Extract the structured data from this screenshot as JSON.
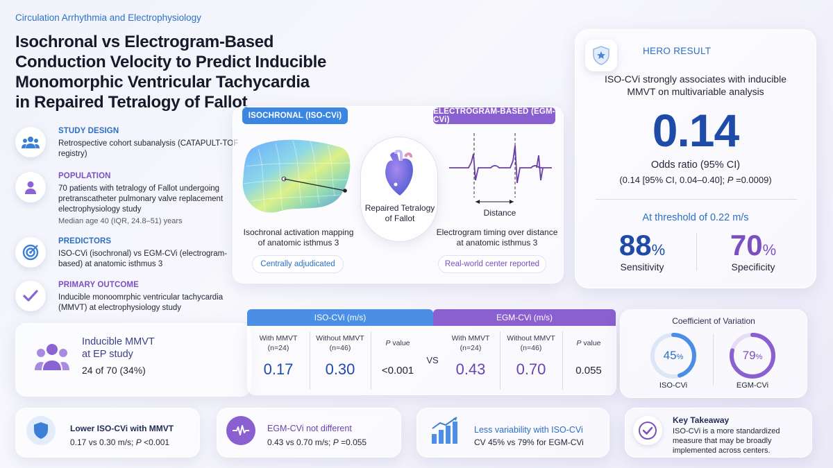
{
  "journal": "Circulation Arrhythmia and Electrophysiology",
  "title": "Isochronal vs Electrogram-Based Conduction Velocity to Predict Inducible Monomorphic Ventricular Tachycardia in Repaired Tetralogy of Fallot",
  "sections": {
    "design": {
      "heading": "STUDY DESIGN",
      "text": "Retrospective cohort subanalysis (CATAPULT-TOF registry)",
      "icon": "group-icon"
    },
    "population": {
      "heading": "POPULATION",
      "text": "70 patients with tetralogy of Fallot undergoing pretranscatheter pulmonary valve replacement electrophysiology study",
      "sub": "Median age 40 (IQR, 24.8–51) years",
      "icon": "person-icon"
    },
    "predictors": {
      "heading": "PREDICTORS",
      "text": "ISO-CVi (isochronal) vs EGM-CVi (electrogram-based) at anatomic isthmus 3",
      "icon": "target-icon"
    },
    "outcome": {
      "heading": "PRIMARY OUTCOME",
      "text": "Inducible monoomrphic ventricular tachycardia (MMVT) at electrophysiology study",
      "icon": "check-icon"
    }
  },
  "methods": {
    "iso_tag": "ISOCHRONAL (ISO-CVi)",
    "egm_tag": "ELECTROGRAM-BASED (EGM-CVi)",
    "heart_label": "Repaired Tetralogy of Fallot",
    "iso_caption": "Isochronal activation mapping of anatomic isthmus 3",
    "egm_caption": "Electrogram timing over distance at anatomic isthmus 3",
    "distance_label": "Distance",
    "iso_pill": "Centrally adjudicated",
    "egm_pill": "Real-world center reported"
  },
  "hero": {
    "label": "HERO RESULT",
    "statement": "ISO-CVi strongly associates with inducible MMVT on multivariable analysis",
    "value": "0.14",
    "metric": "Odds ratio (95% CI)",
    "ci_prefix": "(0.14 [95% CI, 0.04–0.40]; ",
    "ci_p": "P",
    "ci_suffix": " =0.0009)",
    "threshold": "At threshold of 0.22 m/s",
    "sens_value": "88",
    "sens_label": "Sensitivity",
    "spec_value": "70",
    "spec_label": "Specificity",
    "pct": "%"
  },
  "mmvt": {
    "title_line1": "Inducible MMVT",
    "title_line2": "at EP study",
    "value": "24 of 70 (34%)"
  },
  "table": {
    "iso_header": "ISO-CVi (m/s)",
    "egm_header": "EGM-CVi (m/s)",
    "with_label": "With MMVT",
    "with_n": "(n=24)",
    "without_label": "Without MMVT",
    "without_n": "(n=46)",
    "p_italic": "P",
    "p_label": " value",
    "vs": "VS",
    "iso_with": "0.17",
    "iso_without": "0.30",
    "iso_p": "<0.001",
    "egm_with": "0.43",
    "egm_without": "0.70",
    "egm_p": "0.055"
  },
  "cv": {
    "title": "Coefficient of Variation",
    "iso_value": "45",
    "iso_fraction": 0.45,
    "iso_label": "ISO-CVi",
    "egm_value": "79",
    "egm_fraction": 0.79,
    "egm_label": "EGM-CVi",
    "pct": "%"
  },
  "bottom": {
    "b1": {
      "title": "Lower ISO-CVi with MMVT",
      "pre": "0.17 vs 0.30 m/s; ",
      "p": "P",
      "post": " <0.001",
      "icon": "shield-icon"
    },
    "b2": {
      "title": "EGM-CVi not different",
      "pre": "0.43 vs 0.70 m/s; ",
      "p": "P",
      "post": " =0.055",
      "icon": "waveform-icon"
    },
    "b3": {
      "title": "Less variability with ISO-CVi",
      "text": "CV 45% vs 79% for EGM-CVi",
      "icon": "bar-chart-icon"
    },
    "b4": {
      "title": "Key Takeaway",
      "text": "ISO-CVi is a more standardized measure that may be broadly implemented across centers.",
      "icon": "check-circle-icon"
    }
  },
  "colors": {
    "blue": "#2b6fc4",
    "purple": "#7a4fc0",
    "iso_bar": "#4a8ee6",
    "egm_bar": "#8a5fd0"
  }
}
